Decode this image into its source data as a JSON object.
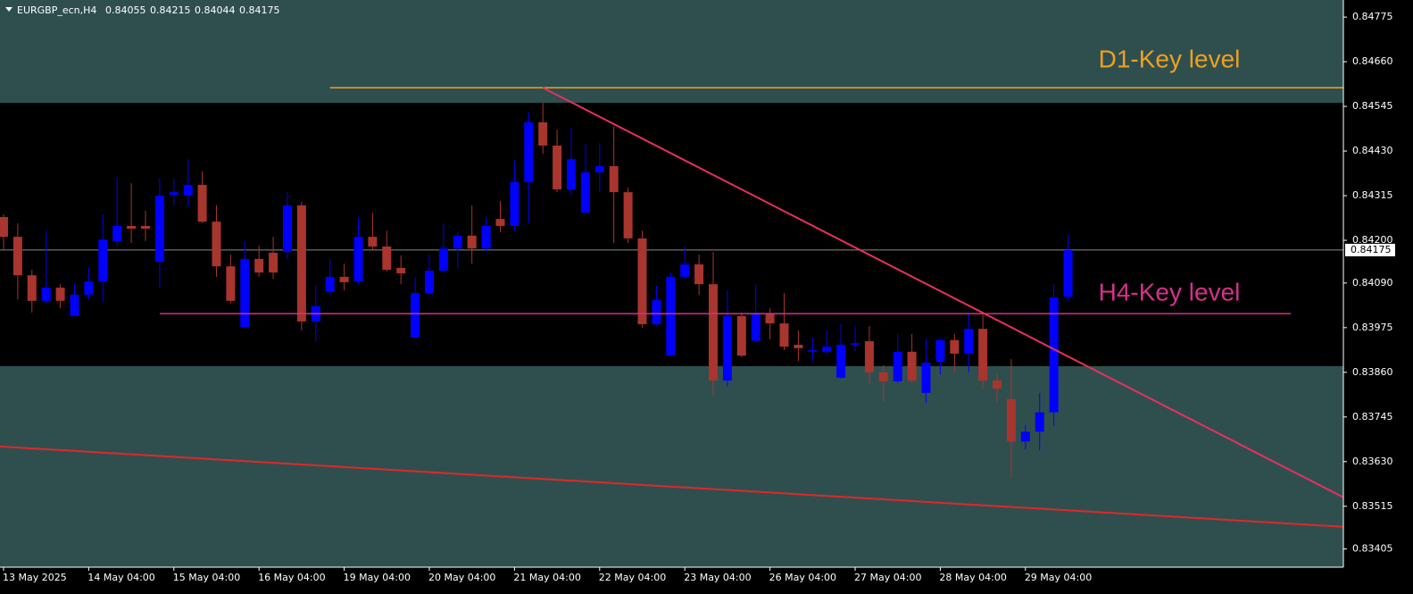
{
  "chart_data": {
    "type": "candlestick",
    "symbol": "EURGBP_ecn,H4",
    "bull_color": "#0000ff",
    "bear_color": "#a8352e",
    "zone_color": "#2f4f4f",
    "ylim": [
      0.83358,
      0.84819
    ],
    "xlim": [
      -0.25,
      94.4
    ],
    "yticks": [
      0.84775,
      {
        "value": 0.8466,
        "label": "0.84660"
      },
      0.84545,
      {
        "value": 0.8443,
        "label": "0.84430"
      },
      0.84315,
      {
        "value": 0.842,
        "label": "0.84200"
      },
      {
        "value": 0.8409,
        "label": "0.84090"
      },
      0.83975,
      {
        "value": 0.8386,
        "label": "0.83860"
      },
      0.83745,
      {
        "value": 0.8363,
        "label": "0.83630"
      },
      0.83515,
      0.83405
    ],
    "xticks": [
      {
        "value": 0,
        "label": "13 May 2025"
      },
      {
        "value": 6,
        "label": "14 May 04:00"
      },
      {
        "value": 12,
        "label": "15 May 04:00"
      },
      {
        "value": 18,
        "label": "16 May 04:00"
      },
      {
        "value": 24,
        "label": "19 May 04:00"
      },
      {
        "value": 30,
        "label": "20 May 04:00"
      },
      {
        "value": 36,
        "label": "21 May 04:00"
      },
      {
        "value": 42,
        "label": "22 May 04:00"
      },
      {
        "value": 48,
        "label": "23 May 04:00"
      },
      {
        "value": 54,
        "label": "26 May 04:00"
      },
      {
        "value": 60,
        "label": "27 May 04:00"
      },
      {
        "value": 66,
        "label": "28 May 04:00"
      },
      {
        "value": 72,
        "label": "29 May 04:00"
      }
    ],
    "open": [
      0.8426,
      0.84209,
      0.8411,
      0.84044,
      0.84078,
      0.84005,
      0.8406,
      0.84094,
      0.84198,
      0.84237,
      0.84237,
      0.84145,
      0.84317,
      0.84315,
      0.84343,
      0.84248,
      0.84133,
      0.83977,
      0.84152,
      0.84168,
      0.8417,
      0.8429,
      0.83991,
      0.84067,
      0.84106,
      0.84094,
      0.84209,
      0.84184,
      0.84129,
      0.83949,
      0.84064,
      0.84122,
      0.84179,
      0.84212,
      0.84179,
      0.84255,
      0.84237,
      0.8435,
      0.84504,
      0.84444,
      0.84331,
      0.84271,
      0.84375,
      0.84391,
      0.84324,
      0.84205,
      0.83984,
      0.83903,
      0.84106,
      0.84138,
      0.84087,
      0.83839,
      0.84005,
      0.83941,
      0.84012,
      0.83986,
      0.83931,
      0.83913,
      0.83913,
      0.83846,
      0.83931,
      0.8394,
      0.8386,
      0.83837,
      0.83913,
      0.83807,
      0.83887,
      0.83943,
      0.83908,
      0.83972,
      0.83839,
      0.83791,
      0.83682,
      0.83707,
      0.83757,
      0.84055
    ],
    "high": [
      0.84267,
      0.84244,
      0.84124,
      0.84225,
      0.84087,
      0.84087,
      0.84129,
      0.84267,
      0.84363,
      0.84347,
      0.84276,
      0.84359,
      0.84359,
      0.84409,
      0.84377,
      0.8429,
      0.84163,
      0.84198,
      0.84186,
      0.84209,
      0.84324,
      0.84299,
      0.84083,
      0.84152,
      0.8414,
      0.8426,
      0.84271,
      0.84225,
      0.84161,
      0.84106,
      0.84163,
      0.84244,
      0.84221,
      0.8429,
      0.8426,
      0.84301,
      0.84405,
      0.84531,
      0.84554,
      0.84485,
      0.8449,
      0.84449,
      0.84451,
      0.84494,
      0.84336,
      0.84225,
      0.84083,
      0.84117,
      0.84184,
      0.84163,
      0.8417,
      0.84071,
      0.84014,
      0.84087,
      0.84025,
      0.84064,
      0.83968,
      0.83949,
      0.83968,
      0.83984,
      0.83979,
      0.83979,
      0.83878,
      0.83959,
      0.83959,
      0.83947,
      0.83947,
      0.83959,
      0.84014,
      0.84014,
      0.83855,
      0.83894,
      0.83724,
      0.83807,
      0.84087,
      0.84215
    ],
    "low": [
      0.84175,
      0.84048,
      0.84014,
      0.84037,
      0.84025,
      0.84005,
      0.84048,
      0.84041,
      0.84186,
      0.84193,
      0.84198,
      0.84078,
      0.8429,
      0.84285,
      0.84244,
      0.84106,
      0.84037,
      0.83977,
      0.84106,
      0.84101,
      0.84152,
      0.83968,
      0.83938,
      0.8406,
      0.84071,
      0.84087,
      0.84175,
      0.8412,
      0.84087,
      0.83949,
      0.8406,
      0.84117,
      0.84129,
      0.8414,
      0.84172,
      0.84221,
      0.84225,
      0.84244,
      0.84423,
      0.84324,
      0.84317,
      0.84271,
      0.84324,
      0.84193,
      0.84193,
      0.83975,
      0.83979,
      0.83903,
      0.84101,
      0.8406,
      0.838,
      0.83823,
      0.83899,
      0.83938,
      0.83945,
      0.83917,
      0.83889,
      0.83888,
      0.83906,
      0.83844,
      0.83915,
      0.83832,
      0.83784,
      0.83832,
      0.83832,
      0.83781,
      0.83855,
      0.8386,
      0.8386,
      0.83816,
      0.83784,
      0.83589,
      0.83661,
      0.83659,
      0.83722,
      0.84044
    ],
    "close": [
      0.84209,
      0.8411,
      0.84044,
      0.84078,
      0.84044,
      0.8406,
      0.84094,
      0.84202,
      0.84237,
      0.8423,
      0.8423,
      0.84315,
      0.84324,
      0.84343,
      0.84248,
      0.84133,
      0.84044,
      0.84152,
      0.84117,
      0.84117,
      0.8429,
      0.83991,
      0.8403,
      0.84106,
      0.84092,
      0.84209,
      0.84184,
      0.84124,
      0.84115,
      0.84064,
      0.84122,
      0.84179,
      0.84212,
      0.84179,
      0.84237,
      0.84237,
      0.8435,
      0.84504,
      0.84444,
      0.84331,
      0.84409,
      0.84375,
      0.84391,
      0.84324,
      0.84205,
      0.83984,
      0.84046,
      0.84106,
      0.84138,
      0.84087,
      0.83839,
      0.84005,
      0.83903,
      0.84012,
      0.83986,
      0.83926,
      0.83922,
      0.83917,
      0.83926,
      0.83931,
      0.83935,
      0.8386,
      0.83837,
      0.83913,
      0.83839,
      0.83885,
      0.83943,
      0.83908,
      0.83972,
      0.83839,
      0.83818,
      0.83682,
      0.83707,
      0.83757,
      0.84053,
      0.84175
    ],
    "zones": [
      {
        "from": 0.84554,
        "to": 0.84819
      },
      {
        "from": 0.83358,
        "to": 0.83876
      }
    ],
    "levels": [
      {
        "label": "D1-Key level",
        "price": 0.84593,
        "start": 23,
        "end": 94.4,
        "color": "#f0a020"
      },
      {
        "label": "H4-Key level",
        "price": 0.84011,
        "start": 11,
        "end": 90.7,
        "color": "#d6308a"
      }
    ],
    "trendlines": [
      {
        "color": "#e8305c",
        "points": [
          [
            38,
            0.84593
          ],
          [
            94.4,
            0.83538
          ]
        ]
      },
      {
        "color": "#e02828",
        "points": [
          [
            -0.25,
            0.83669
          ],
          [
            94.4,
            0.83462
          ]
        ]
      }
    ]
  }
}
